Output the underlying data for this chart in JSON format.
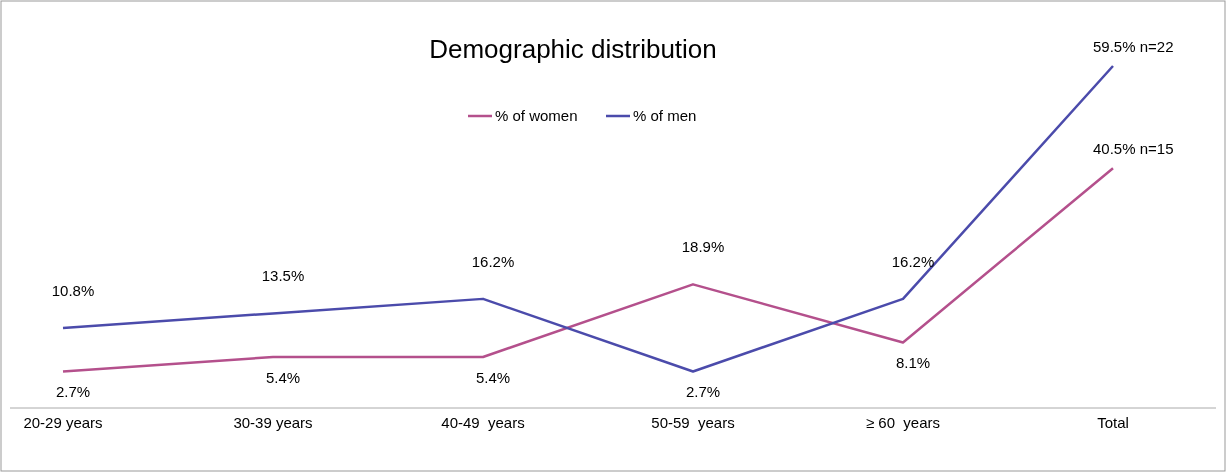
{
  "chart_data": {
    "type": "line",
    "title": "Demographic distribution",
    "categories": [
      "20-29 years",
      "30-39 years",
      "40-49  years",
      "50-59  years",
      "≥ 60  years",
      "Total"
    ],
    "series": [
      {
        "name": "% of women",
        "color": "#b4508c",
        "values": [
          2.7,
          5.4,
          5.4,
          18.9,
          8.1,
          40.5
        ],
        "value_labels": [
          "2.7%",
          "5.4%",
          "5.4%",
          "18.9%",
          "8.1%",
          "40.5% n=15"
        ]
      },
      {
        "name": "% of men",
        "color": "#4b4bab",
        "values": [
          10.8,
          13.5,
          16.2,
          2.7,
          16.2,
          59.5
        ],
        "value_labels": [
          "10.8%",
          "13.5%",
          "16.2%",
          "2.7%",
          "16.2%",
          "59.5% n=22"
        ]
      }
    ],
    "legend": "top",
    "grid": false,
    "marker": "none",
    "line_style": "solid"
  }
}
